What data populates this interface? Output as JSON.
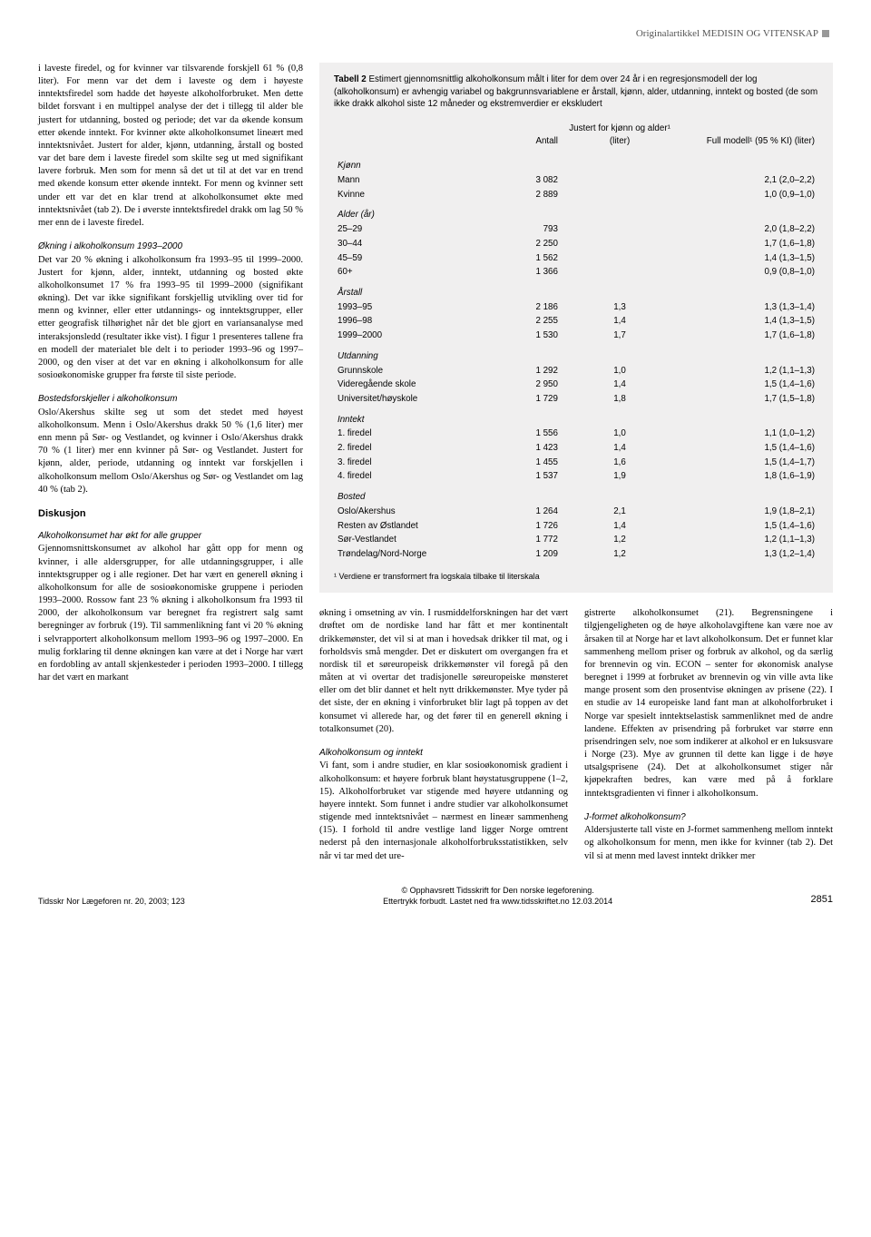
{
  "header": {
    "label": "Originalartikkel   MEDISIN OG VITENSKAP"
  },
  "left": {
    "p1": "i laveste firedel, og for kvinner var tilsvarende forskjell 61 % (0,8 liter). For menn var det dem i laveste og dem i høyeste inntektsfiredel som hadde det høyeste alkoholforbruket. Men dette bildet forsvant i en multippel analyse der det i tillegg til alder ble justert for utdanning, bosted og periode; det var da økende konsum etter økende inntekt. For kvinner økte alkoholkonsumet lineært med inntektsnivået. Justert for alder, kjønn, utdanning, årstall og bosted var det bare dem i laveste firedel som skilte seg ut med signifikant lavere forbruk. Men som for menn så det ut til at det var en trend med økende konsum etter økende inntekt. For menn og kvinner sett under ett var det en klar trend at alkoholkonsumet økte med inntektsnivået (tab 2). De i øverste inntektsfiredel drakk om lag 50 % mer enn de i laveste firedel.",
    "h1": "Økning i alkoholkonsum 1993–2000",
    "p2": "Det var 20 % økning i alkoholkonsum fra 1993–95 til 1999–2000. Justert for kjønn, alder, inntekt, utdanning og bosted økte alkoholkonsumet 17 % fra 1993–95 til 1999–2000 (signifikant økning). Det var ikke signifikant forskjellig utvikling over tid for menn og kvinner, eller etter utdannings- og inntektsgrupper, eller etter geografisk tilhørighet når det ble gjort en variansanalyse med interaksjonsledd (resultater ikke vist). I figur 1 presenteres tallene fra en modell der materialet ble delt i to perioder 1993–96 og 1997–2000, og den viser at det var en økning i alkoholkonsum for alle sosioøkonomiske grupper fra første til siste periode.",
    "h2": "Bostedsforskjeller i alkoholkonsum",
    "p3": "Oslo/Akershus skilte seg ut som det stedet med høyest alkoholkonsum. Menn i Oslo/Akershus drakk 50 % (1,6 liter) mer enn menn på Sør- og Vestlandet, og kvinner i Oslo/Akershus drakk 70 % (1 liter) mer enn kvinner på Sør- og Vestlandet. Justert for kjønn, alder, periode, utdanning og inntekt var forskjellen i alkoholkonsum mellom Oslo/Akershus og Sør- og Vestlandet om lag 40 % (tab 2).",
    "h3": "Diskusjon",
    "h4": "Alkoholkonsumet har økt for alle grupper",
    "p4": "Gjennomsnittskonsumet av alkohol har gått opp for menn og kvinner, i alle aldersgrupper, for alle utdanningsgrupper, i alle inntektsgrupper og i alle regioner. Det har vært en generell økning i alkoholkonsum for alle de sosioøkonomiske gruppene i perioden 1993–2000. Rossow fant 23 % økning i alkoholkonsum fra 1993 til 2000, der alkoholkonsum var beregnet fra registrert salg samt beregninger av forbruk (19). Til sammenlikning fant vi 20 % økning i selvrapportert alkoholkonsum mellom 1993–96 og 1997–2000. En mulig forklaring til denne økningen kan være at det i Norge har vært en fordobling av antall skjenkesteder i perioden 1993–2000. I tillegg har det vært en markant"
  },
  "table": {
    "title_bold": "Tabell 2",
    "title_rest": "  Estimert gjennomsnittlig alkoholkonsum målt i liter for dem over 24 år i en regresjonsmodell der log (alkoholkonsum) er avhengig variabel og bakgrunnsvariablene er årstall, kjønn, alder, utdanning, inntekt og bosted (de som ikke drakk alkohol siste 12 måneder og ekstremverdier er ekskludert",
    "headers": {
      "c1": "",
      "c2": "Antall",
      "c3": "Justert for kjønn og alder¹ (liter)",
      "c4": "Full modell¹ (95 % KI) (liter)"
    },
    "sections": [
      {
        "name": "Kjønn",
        "rows": [
          {
            "label": "Mann",
            "n": "3 082",
            "adj": "",
            "full": "2,1 (2,0–2,2)"
          },
          {
            "label": "Kvinne",
            "n": "2 889",
            "adj": "",
            "full": "1,0 (0,9–1,0)"
          }
        ]
      },
      {
        "name": "Alder (år)",
        "rows": [
          {
            "label": "25–29",
            "n": "793",
            "adj": "",
            "full": "2,0 (1,8–2,2)"
          },
          {
            "label": "30–44",
            "n": "2 250",
            "adj": "",
            "full": "1,7 (1,6–1,8)"
          },
          {
            "label": "45–59",
            "n": "1 562",
            "adj": "",
            "full": "1,4 (1,3–1,5)"
          },
          {
            "label": "60+",
            "n": "1 366",
            "adj": "",
            "full": "0,9 (0,8–1,0)"
          }
        ]
      },
      {
        "name": "Årstall",
        "rows": [
          {
            "label": "1993–95",
            "n": "2 186",
            "adj": "1,3",
            "full": "1,3 (1,3–1,4)"
          },
          {
            "label": "1996–98",
            "n": "2 255",
            "adj": "1,4",
            "full": "1,4 (1,3–1,5)"
          },
          {
            "label": "1999–2000",
            "n": "1 530",
            "adj": "1,7",
            "full": "1,7 (1,6–1,8)"
          }
        ]
      },
      {
        "name": "Utdanning",
        "rows": [
          {
            "label": "Grunnskole",
            "n": "1 292",
            "adj": "1,0",
            "full": "1,2 (1,1–1,3)"
          },
          {
            "label": "Videregående skole",
            "n": "2 950",
            "adj": "1,4",
            "full": "1,5 (1,4–1,6)"
          },
          {
            "label": "Universitet/høyskole",
            "n": "1 729",
            "adj": "1,8",
            "full": "1,7 (1,5–1,8)"
          }
        ]
      },
      {
        "name": "Inntekt",
        "rows": [
          {
            "label": "1. firedel",
            "n": "1 556",
            "adj": "1,0",
            "full": "1,1 (1,0–1,2)"
          },
          {
            "label": "2. firedel",
            "n": "1 423",
            "adj": "1,4",
            "full": "1,5 (1,4–1,6)"
          },
          {
            "label": "3. firedel",
            "n": "1 455",
            "adj": "1,6",
            "full": "1,5 (1,4–1,7)"
          },
          {
            "label": "4. firedel",
            "n": "1 537",
            "adj": "1,9",
            "full": "1,8 (1,6–1,9)"
          }
        ]
      },
      {
        "name": "Bosted",
        "rows": [
          {
            "label": "Oslo/Akershus",
            "n": "1 264",
            "adj": "2,1",
            "full": "1,9 (1,8–2,1)"
          },
          {
            "label": "Resten av Østlandet",
            "n": "1 726",
            "adj": "1,4",
            "full": "1,5 (1,4–1,6)"
          },
          {
            "label": "Sør-Vestlandet",
            "n": "1 772",
            "adj": "1,2",
            "full": "1,2 (1,1–1,3)"
          },
          {
            "label": "Trøndelag/Nord-Norge",
            "n": "1 209",
            "adj": "1,2",
            "full": "1,3 (1,2–1,4)"
          }
        ]
      }
    ],
    "footnote": "¹ Verdiene er transformert fra logskala tilbake til literskala"
  },
  "lower": {
    "mid": {
      "p1": "økning i omsetning av vin. I rusmiddelforskningen har det vært drøftet om de nordiske land har fått et mer kontinentalt drikkemønster, det vil si at man i hovedsak drikker til mat, og i forholdsvis små mengder. Det er diskutert om overgangen fra et nordisk til et søreuropeisk drikkemønster vil foregå på den måten at vi overtar det tradisjonelle søreuropeiske mønsteret eller om det blir dannet et helt nytt drikkemønster. Mye tyder på det siste, der en økning i vinforbruket blir lagt på toppen av det konsumet vi allerede har, og det fører til en generell økning i totalkonsumet (20).",
      "h1": "Alkoholkonsum og inntekt",
      "p2": "Vi fant, som i andre studier, en klar sosioøkonomisk gradient i alkoholkonsum: et høyere forbruk blant høystatusgruppene (1–2, 15). Alkoholforbruket var stigende med høyere utdanning og høyere inntekt. Som funnet i andre studier var alkoholkonsumet stigende med inntektsnivået – nærmest en lineær sammenheng (15). I forhold til andre vestlige land ligger Norge omtrent nederst på den internasjonale alkoholforbruksstatistikken, selv når vi tar med det ure-"
    },
    "right": {
      "p1": "gistrerte alkoholkonsumet (21). Begrensningene i tilgjengeligheten og de høye alkoholavgiftene kan være noe av årsaken til at Norge har et lavt alkoholkonsum. Det er funnet klar sammenheng mellom priser og forbruk av alkohol, og da særlig for brennevin og vin. ECON – senter for økonomisk analyse beregnet i 1999 at forbruket av brennevin og vin ville avta like mange prosent som den prosentvise økningen av prisene (22). I en studie av 14 europeiske land fant man at alkoholforbruket i Norge var spesielt inntektselastisk sammenliknet med de andre landene. Effekten av prisendring på forbruket var større enn prisendringen selv, noe som indikerer at alkohol er en luksusvare i Norge (23). Mye av grunnen til dette kan ligge i de høye utsalgsprisene (24). Det at alkoholkonsumet stiger når kjøpekraften bedres, kan være med på å forklare inntektsgradienten vi finner i alkoholkonsum.",
      "h1": "J-formet alkoholkonsum?",
      "p2": "Aldersjusterte tall viste en J-formet sammenheng mellom inntekt og alkoholkonsum for menn, men ikke for kvinner (tab 2). Det vil si at menn med lavest inntekt drikker mer"
    }
  },
  "footer": {
    "left": "Tidsskr Nor Lægeforen nr. 20, 2003; 123",
    "center1": "© Opphavsrett Tidsskrift for Den norske legeforening.",
    "center2": "Ettertrykk forbudt. Lastet ned fra www.tidsskriftet.no 12.03.2014",
    "page": "2851"
  }
}
